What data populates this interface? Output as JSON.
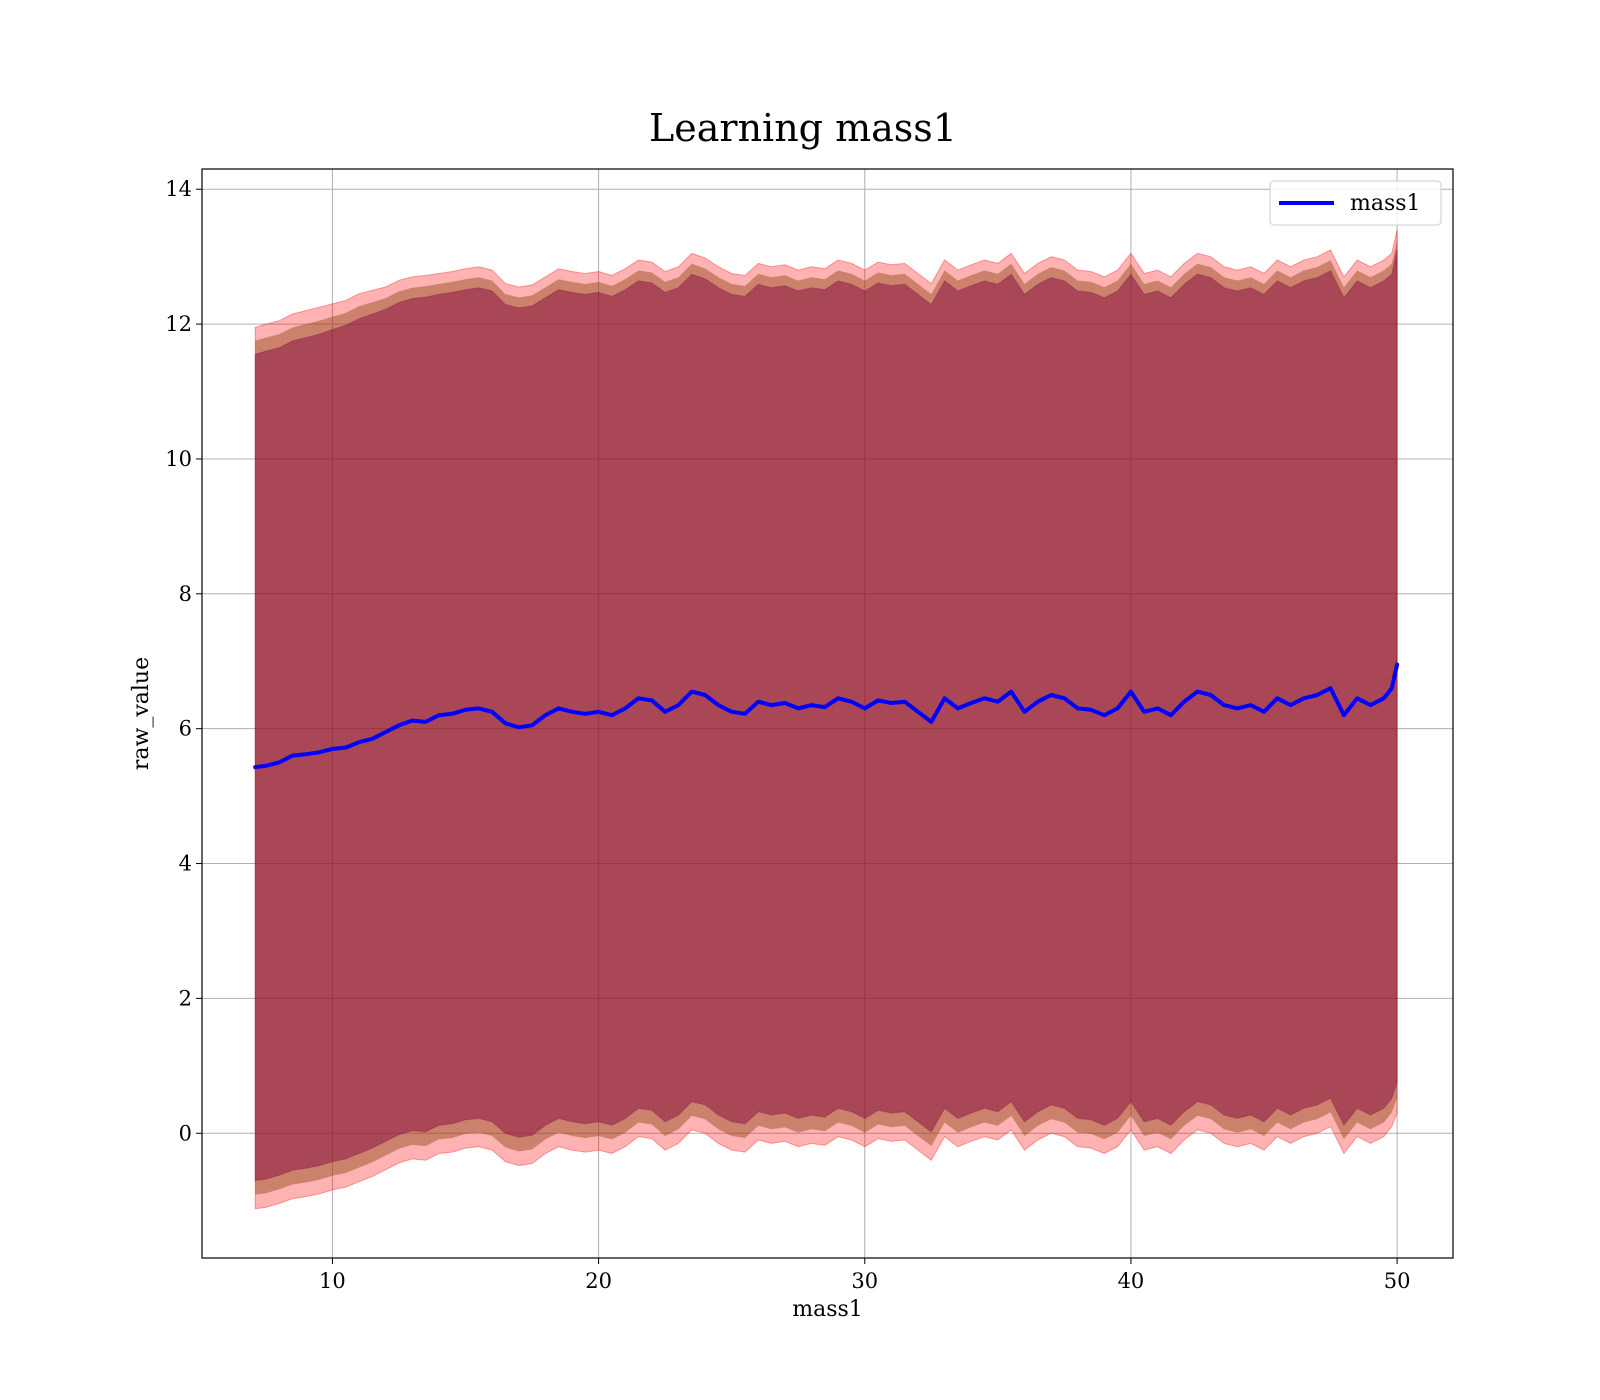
{
  "chart_data": {
    "type": "line",
    "title": "Learning mass1",
    "xlabel": "mass1",
    "ylabel": "raw_value",
    "xlim": [
      5.1,
      52.1
    ],
    "ylim": [
      -1.85,
      14.3
    ],
    "xticks": [
      10,
      20,
      30,
      40,
      50
    ],
    "yticks": [
      0,
      2,
      4,
      6,
      8,
      10,
      12,
      14
    ],
    "grid": true,
    "legend": {
      "position": "top-right",
      "entries": [
        "mass1"
      ]
    },
    "colors": {
      "line": "#0000ff",
      "band_outer": "#ff0000",
      "band_mid": "#8b4513",
      "band_inner": "#800040",
      "grid": "#b0b0b0"
    },
    "series": [
      {
        "name": "mass1",
        "x": [
          7.1,
          7.5,
          8.0,
          8.5,
          9.0,
          9.5,
          10.0,
          10.5,
          11.0,
          11.5,
          12.0,
          12.5,
          13.0,
          13.5,
          14.0,
          14.5,
          15.0,
          15.5,
          16.0,
          16.5,
          17.0,
          17.5,
          18.0,
          18.5,
          19.0,
          19.5,
          20.0,
          20.5,
          21.0,
          21.5,
          22.0,
          22.5,
          23.0,
          23.5,
          24.0,
          24.5,
          25.0,
          25.5,
          26.0,
          26.5,
          27.0,
          27.5,
          28.0,
          28.5,
          29.0,
          29.5,
          30.0,
          30.5,
          31.0,
          31.5,
          32.0,
          32.5,
          33.0,
          33.5,
          34.0,
          34.5,
          35.0,
          35.5,
          36.0,
          36.5,
          37.0,
          37.5,
          38.0,
          38.5,
          39.0,
          39.5,
          40.0,
          40.5,
          41.0,
          41.5,
          42.0,
          42.5,
          43.0,
          43.5,
          44.0,
          44.5,
          45.0,
          45.5,
          46.0,
          46.5,
          47.0,
          47.5,
          48.0,
          48.5,
          49.0,
          49.5,
          49.8,
          50.0
        ],
        "y": [
          5.43,
          5.45,
          5.5,
          5.6,
          5.62,
          5.65,
          5.7,
          5.72,
          5.8,
          5.85,
          5.95,
          6.05,
          6.12,
          6.1,
          6.2,
          6.22,
          6.28,
          6.3,
          6.25,
          6.08,
          6.02,
          6.05,
          6.2,
          6.3,
          6.25,
          6.22,
          6.25,
          6.2,
          6.3,
          6.45,
          6.42,
          6.25,
          6.35,
          6.55,
          6.5,
          6.35,
          6.25,
          6.22,
          6.4,
          6.35,
          6.38,
          6.3,
          6.35,
          6.32,
          6.45,
          6.4,
          6.3,
          6.42,
          6.38,
          6.4,
          6.25,
          6.1,
          6.45,
          6.3,
          6.38,
          6.45,
          6.4,
          6.55,
          6.25,
          6.4,
          6.5,
          6.45,
          6.3,
          6.28,
          6.2,
          6.3,
          6.55,
          6.25,
          6.3,
          6.2,
          6.4,
          6.55,
          6.5,
          6.35,
          6.3,
          6.35,
          6.25,
          6.45,
          6.35,
          6.45,
          6.5,
          6.6,
          6.2,
          6.45,
          6.35,
          6.45,
          6.6,
          6.95
        ],
        "band_outer_upper": [
          11.95,
          12.0,
          12.05,
          12.15,
          12.2,
          12.25,
          12.3,
          12.35,
          12.45,
          12.5,
          12.55,
          12.65,
          12.7,
          12.72,
          12.75,
          12.78,
          12.82,
          12.85,
          12.8,
          12.6,
          12.55,
          12.58,
          12.7,
          12.82,
          12.78,
          12.75,
          12.78,
          12.72,
          12.82,
          12.95,
          12.92,
          12.78,
          12.85,
          13.05,
          12.98,
          12.85,
          12.75,
          12.72,
          12.9,
          12.85,
          12.88,
          12.8,
          12.85,
          12.82,
          12.95,
          12.9,
          12.8,
          12.92,
          12.88,
          12.9,
          12.75,
          12.6,
          12.95,
          12.8,
          12.88,
          12.95,
          12.9,
          13.05,
          12.75,
          12.9,
          13.0,
          12.95,
          12.8,
          12.78,
          12.7,
          12.8,
          13.05,
          12.75,
          12.8,
          12.7,
          12.9,
          13.05,
          13.0,
          12.85,
          12.8,
          12.85,
          12.75,
          12.95,
          12.85,
          12.95,
          13.0,
          13.1,
          12.7,
          12.95,
          12.85,
          12.95,
          13.05,
          13.4
        ],
        "band_inner_upper": [
          11.55,
          11.6,
          11.65,
          11.75,
          11.8,
          11.85,
          11.92,
          11.98,
          12.08,
          12.15,
          12.22,
          12.32,
          12.38,
          12.4,
          12.44,
          12.47,
          12.51,
          12.54,
          12.49,
          12.29,
          12.24,
          12.27,
          12.39,
          12.51,
          12.47,
          12.44,
          12.47,
          12.41,
          12.51,
          12.64,
          12.61,
          12.47,
          12.54,
          12.74,
          12.67,
          12.54,
          12.44,
          12.41,
          12.59,
          12.54,
          12.57,
          12.49,
          12.54,
          12.51,
          12.64,
          12.59,
          12.49,
          12.61,
          12.57,
          12.59,
          12.44,
          12.29,
          12.64,
          12.49,
          12.57,
          12.64,
          12.59,
          12.74,
          12.44,
          12.59,
          12.69,
          12.64,
          12.49,
          12.47,
          12.39,
          12.49,
          12.74,
          12.44,
          12.49,
          12.39,
          12.59,
          12.74,
          12.69,
          12.54,
          12.49,
          12.54,
          12.44,
          12.64,
          12.54,
          12.64,
          12.69,
          12.79,
          12.39,
          12.64,
          12.54,
          12.64,
          12.74,
          13.1
        ],
        "band_inner_lower": [
          -0.7,
          -0.68,
          -0.62,
          -0.55,
          -0.52,
          -0.48,
          -0.42,
          -0.38,
          -0.3,
          -0.22,
          -0.12,
          -0.02,
          0.04,
          0.02,
          0.12,
          0.14,
          0.2,
          0.22,
          0.17,
          0.0,
          -0.06,
          -0.03,
          0.12,
          0.22,
          0.17,
          0.14,
          0.17,
          0.12,
          0.22,
          0.37,
          0.34,
          0.17,
          0.27,
          0.47,
          0.42,
          0.27,
          0.17,
          0.14,
          0.32,
          0.27,
          0.3,
          0.22,
          0.27,
          0.24,
          0.37,
          0.32,
          0.22,
          0.34,
          0.3,
          0.32,
          0.17,
          0.02,
          0.37,
          0.22,
          0.3,
          0.37,
          0.32,
          0.47,
          0.17,
          0.32,
          0.42,
          0.37,
          0.22,
          0.2,
          0.12,
          0.22,
          0.47,
          0.17,
          0.22,
          0.12,
          0.32,
          0.47,
          0.42,
          0.27,
          0.22,
          0.27,
          0.17,
          0.37,
          0.27,
          0.37,
          0.42,
          0.52,
          0.12,
          0.37,
          0.27,
          0.37,
          0.52,
          0.75
        ],
        "band_outer_lower": [
          -1.12,
          -1.1,
          -1.04,
          -0.97,
          -0.94,
          -0.9,
          -0.84,
          -0.8,
          -0.72,
          -0.64,
          -0.54,
          -0.44,
          -0.38,
          -0.4,
          -0.3,
          -0.28,
          -0.22,
          -0.2,
          -0.25,
          -0.42,
          -0.48,
          -0.45,
          -0.3,
          -0.2,
          -0.25,
          -0.28,
          -0.25,
          -0.3,
          -0.2,
          -0.05,
          -0.08,
          -0.25,
          -0.15,
          0.05,
          0.0,
          -0.15,
          -0.25,
          -0.28,
          -0.1,
          -0.15,
          -0.12,
          -0.2,
          -0.15,
          -0.18,
          -0.05,
          -0.1,
          -0.2,
          -0.08,
          -0.12,
          -0.1,
          -0.25,
          -0.4,
          -0.05,
          -0.2,
          -0.12,
          -0.05,
          -0.1,
          0.05,
          -0.25,
          -0.1,
          0.0,
          -0.05,
          -0.2,
          -0.22,
          -0.3,
          -0.2,
          0.05,
          -0.25,
          -0.2,
          -0.3,
          -0.1,
          0.05,
          0.0,
          -0.15,
          -0.2,
          -0.15,
          -0.25,
          -0.05,
          -0.15,
          -0.05,
          0.0,
          0.1,
          -0.3,
          -0.05,
          -0.15,
          -0.05,
          0.1,
          0.3
        ]
      }
    ]
  }
}
